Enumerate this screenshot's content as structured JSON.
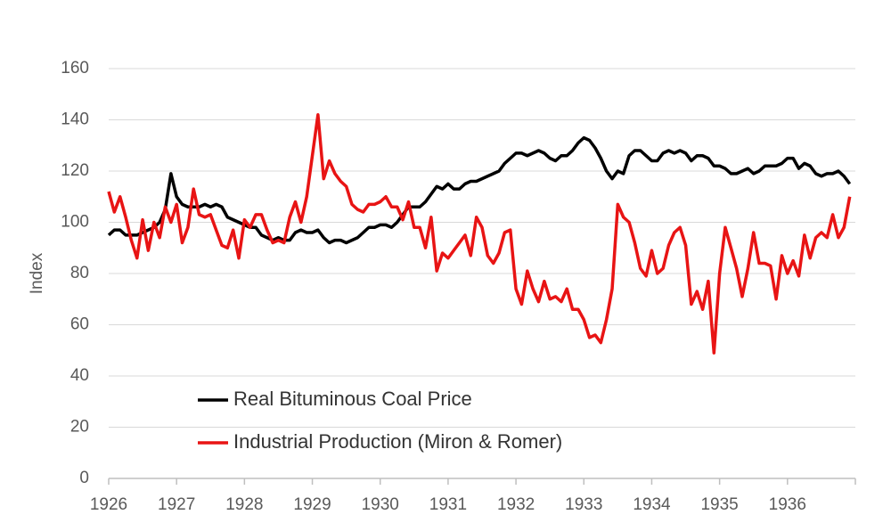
{
  "chart_data": {
    "type": "line",
    "ylabel": "Index",
    "xlim": [
      1926,
      1937
    ],
    "xticks": [
      1926,
      1927,
      1928,
      1929,
      1930,
      1931,
      1932,
      1933,
      1934,
      1935,
      1936
    ],
    "ylim": [
      0,
      160
    ],
    "yticks": [
      0,
      20,
      40,
      60,
      80,
      100,
      120,
      140,
      160
    ],
    "grid": true,
    "legend": "lower left",
    "x": [
      1926,
      1926.083,
      1926.167,
      1926.25,
      1926.333,
      1926.417,
      1926.5,
      1926.583,
      1926.667,
      1926.75,
      1926.833,
      1926.917,
      1927,
      1927.083,
      1927.167,
      1927.25,
      1927.333,
      1927.417,
      1927.5,
      1927.583,
      1927.667,
      1927.75,
      1927.833,
      1927.917,
      1928,
      1928.083,
      1928.167,
      1928.25,
      1928.333,
      1928.417,
      1928.5,
      1928.583,
      1928.667,
      1928.75,
      1928.833,
      1928.917,
      1929,
      1929.083,
      1929.167,
      1929.25,
      1929.333,
      1929.417,
      1929.5,
      1929.583,
      1929.667,
      1929.75,
      1929.833,
      1929.917,
      1930,
      1930.083,
      1930.167,
      1930.25,
      1930.333,
      1930.417,
      1930.5,
      1930.583,
      1930.667,
      1930.75,
      1930.833,
      1930.917,
      1931,
      1931.083,
      1931.167,
      1931.25,
      1931.333,
      1931.417,
      1931.5,
      1931.583,
      1931.667,
      1931.75,
      1931.833,
      1931.917,
      1932,
      1932.083,
      1932.167,
      1932.25,
      1932.333,
      1932.417,
      1932.5,
      1932.583,
      1932.667,
      1932.75,
      1932.833,
      1932.917,
      1933,
      1933.083,
      1933.167,
      1933.25,
      1933.333,
      1933.417,
      1933.5,
      1933.583,
      1933.667,
      1933.75,
      1933.833,
      1933.917,
      1934,
      1934.083,
      1934.167,
      1934.25,
      1934.333,
      1934.417,
      1934.5,
      1934.583,
      1934.667,
      1934.75,
      1934.833,
      1934.917,
      1935,
      1935.083,
      1935.167,
      1935.25,
      1935.333,
      1935.417,
      1935.5,
      1935.583,
      1935.667,
      1935.75,
      1935.833,
      1935.917,
      1936,
      1936.083,
      1936.167,
      1936.25,
      1936.333,
      1936.417,
      1936.5,
      1936.583,
      1936.667,
      1936.75,
      1936.833,
      1936.917
    ],
    "series": [
      {
        "name": "Real Bituminous Coal Price",
        "color": "#000000",
        "values": [
          95,
          97,
          97,
          95,
          95,
          95,
          96,
          97,
          98,
          100,
          105,
          119,
          110,
          107,
          106,
          106,
          106,
          107,
          106,
          107,
          106,
          102,
          101,
          100,
          99,
          98,
          98,
          95,
          94,
          93,
          94,
          93,
          93,
          96,
          97,
          96,
          96,
          97,
          94,
          92,
          93,
          93,
          92,
          93,
          94,
          96,
          98,
          98,
          99,
          99,
          98,
          100,
          103,
          106,
          106,
          106,
          108,
          111,
          114,
          113,
          115,
          113,
          113,
          115,
          116,
          116,
          117,
          118,
          119,
          120,
          123,
          125,
          127,
          127,
          126,
          127,
          128,
          127,
          125,
          124,
          126,
          126,
          128,
          131,
          133,
          132,
          129,
          125,
          120,
          117,
          120,
          119,
          126,
          128,
          128,
          126,
          124,
          124,
          127,
          128,
          127,
          128,
          127,
          124,
          126,
          126,
          125,
          122,
          122,
          121,
          119,
          119,
          120,
          121,
          119,
          120,
          122,
          122,
          122,
          123,
          125,
          125,
          121,
          123,
          122,
          119,
          118,
          119,
          119,
          120,
          118,
          115
        ]
      },
      {
        "name": "Industrial Production (Miron & Romer)",
        "color": "#e81414",
        "values": [
          112,
          104,
          110,
          102,
          93,
          86,
          101,
          89,
          100,
          94,
          106,
          100,
          107,
          92,
          98,
          113,
          103,
          102,
          103,
          97,
          91,
          90,
          97,
          86,
          101,
          98,
          103,
          103,
          97,
          92,
          93,
          92,
          102,
          108,
          100,
          110,
          126,
          142,
          117,
          124,
          119,
          116,
          114,
          107,
          105,
          104,
          107,
          107,
          108,
          110,
          106,
          106,
          101,
          108,
          98,
          98,
          90,
          102,
          81,
          88,
          86,
          89,
          92,
          95,
          87,
          102,
          98,
          87,
          84,
          88,
          96,
          97,
          74,
          68,
          81,
          74,
          69,
          77,
          70,
          71,
          69,
          74,
          66,
          66,
          62,
          55,
          56,
          53,
          62,
          74,
          107,
          102,
          100,
          92,
          82,
          79,
          89,
          80,
          82,
          91,
          96,
          98,
          91,
          68,
          73,
          66,
          77,
          49,
          80,
          98,
          90,
          82,
          71,
          82,
          96,
          84,
          84,
          83,
          70,
          87,
          80,
          85,
          79,
          95,
          86,
          94,
          96,
          94,
          103,
          94,
          98,
          110
        ]
      }
    ]
  }
}
